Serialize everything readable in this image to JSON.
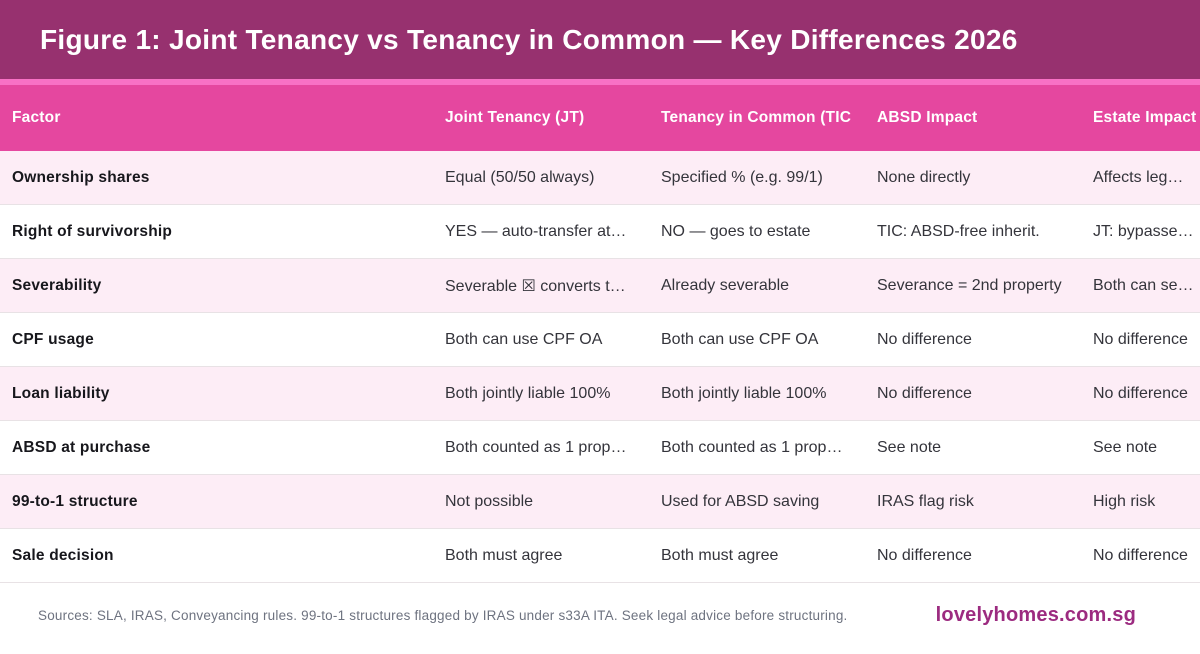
{
  "title": "Figure 1: Joint Tenancy vs Tenancy in Common — Key Differences 2026",
  "table": {
    "columns": [
      "Factor",
      "Joint Tenancy (JT)",
      "Tenancy in Common (TIC",
      "ABSD Impact",
      "Estate Impact"
    ],
    "rows": [
      {
        "factor": "Ownership shares",
        "jt": "Equal (50/50 always)",
        "tic": "Specified % (e.g. 99/1)",
        "absd": "None directly",
        "estate": "Affects leg…"
      },
      {
        "factor": "Right of survivorship",
        "jt": "YES — auto-transfer at…",
        "tic": "NO — goes to estate",
        "absd": "TIC: ABSD-free inherit.",
        "estate": "JT: bypasse…"
      },
      {
        "factor": "Severability",
        "jt": "Severable ☒ converts t…",
        "tic": "Already severable",
        "absd": "Severance = 2nd property",
        "estate": "Both can se…"
      },
      {
        "factor": "CPF usage",
        "jt": "Both can use CPF OA",
        "tic": "Both can use CPF OA",
        "absd": "No difference",
        "estate": "No difference"
      },
      {
        "factor": "Loan liability",
        "jt": "Both jointly liable 100%",
        "tic": "Both jointly liable 100%",
        "absd": "No difference",
        "estate": "No difference"
      },
      {
        "factor": "ABSD at purchase",
        "jt": "Both counted as 1 prop…",
        "tic": "Both counted as 1 prop…",
        "absd": "See note",
        "estate": "See note"
      },
      {
        "factor": "99-to-1 structure",
        "jt": "Not possible",
        "tic": "Used for ABSD saving",
        "absd": "IRAS flag risk",
        "estate": "High risk"
      },
      {
        "factor": "Sale decision",
        "jt": "Both must agree",
        "tic": "Both must agree",
        "absd": "No difference",
        "estate": "No difference"
      }
    ]
  },
  "footer": {
    "sources": "Sources: SLA, IRAS, Conveyancing rules. 99-to-1 structures flagged by IRAS under s33A ITA. Seek legal advice before structuring.",
    "brand": "lovelyhomes.com.sg"
  },
  "colors": {
    "title_bar": "#97316F",
    "accent_strip": "#F871C5",
    "header_row": "#E5479F",
    "pink_row": "#FDEDF6",
    "brand_text": "#9C2B80"
  }
}
